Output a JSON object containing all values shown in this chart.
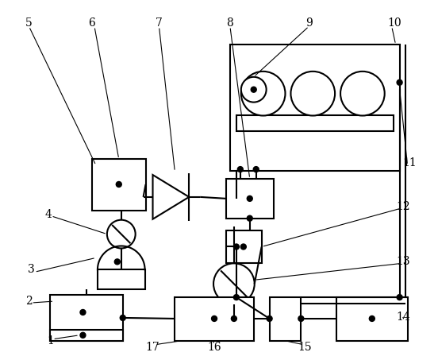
{
  "bg_color": "#ffffff",
  "lc": "#000000",
  "lw": 1.5,
  "lw_thin": 0.8,
  "figsize": [
    5.52,
    4.53
  ],
  "dpi": 100
}
